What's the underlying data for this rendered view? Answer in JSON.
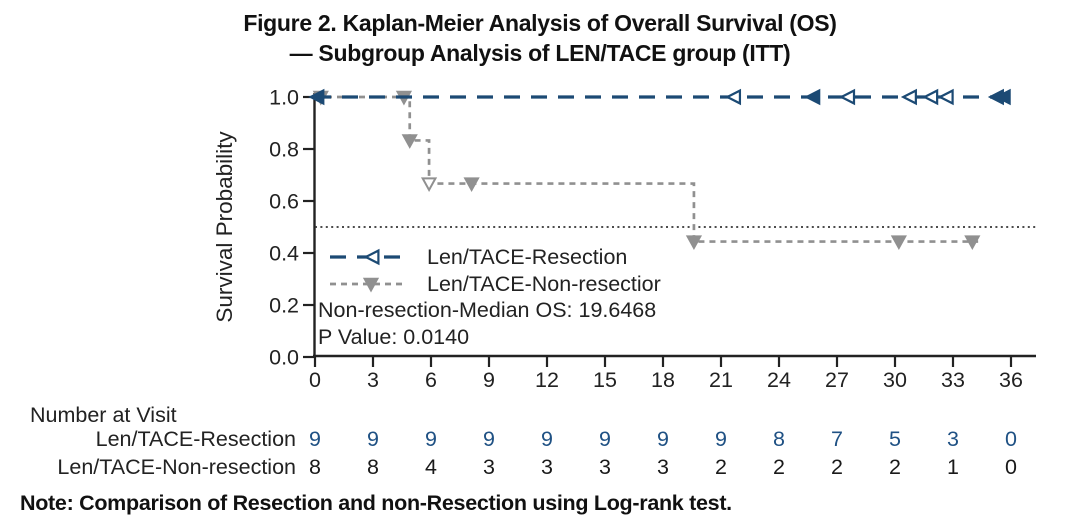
{
  "figure": {
    "title_line1": "Figure 2. Kaplan-Meier Analysis of Overall Survival (OS)",
    "title_line2": "— Subgroup Analysis of LEN/TACE group (ITT)",
    "note": "Note: Comparison of Resection and non-Resection using Log-rank test."
  },
  "chart_data": {
    "type": "line",
    "subtype": "kaplan-meier-step",
    "title": "Figure 2. Kaplan-Meier Analysis of Overall Survival (OS) — Subgroup Analysis of LEN/TACE group (ITT)",
    "xlabel": "",
    "ylabel": "Survival Probability",
    "xlim": [
      0,
      36
    ],
    "ylim": [
      0.0,
      1.0
    ],
    "xticks": [
      0,
      3,
      6,
      9,
      12,
      15,
      18,
      21,
      24,
      27,
      30,
      33,
      36
    ],
    "yticks": [
      0.0,
      0.2,
      0.4,
      0.6,
      0.8,
      1.0
    ],
    "ytick_labels": [
      "0.0",
      "0.2",
      "0.4",
      "0.6",
      "0.8",
      "1.0"
    ],
    "grid": false,
    "reference_line_y": 0.5,
    "legend_position": "inside-left-middle",
    "annotations": [
      "Non-resection-Median OS: 19.6468",
      "P Value: 0.0140"
    ],
    "colors": {
      "resection_blue": "#1c4a74",
      "resection_number_blue": "#1f5184",
      "nonresection_gray": "#909090",
      "reference_black": "#333333"
    },
    "series": [
      {
        "name": "Len/TACE-Resection",
        "legend_label": "Len/TACE-Resection",
        "color": "#1c4a74",
        "line_style": "dashed",
        "marker": "left-triangle",
        "step_points": [
          [
            0,
            1.0
          ],
          [
            35.7,
            1.0
          ]
        ],
        "censor_marks": [
          {
            "x": 0.15,
            "y": 1.0,
            "open": false
          },
          {
            "x": 21.7,
            "y": 1.0,
            "open": true
          },
          {
            "x": 25.8,
            "y": 1.0,
            "open": false
          },
          {
            "x": 27.6,
            "y": 1.0,
            "open": true
          },
          {
            "x": 30.8,
            "y": 1.0,
            "open": true
          },
          {
            "x": 31.9,
            "y": 1.0,
            "open": true
          },
          {
            "x": 32.7,
            "y": 1.0,
            "open": true
          },
          {
            "x": 35.3,
            "y": 1.0,
            "open": false
          },
          {
            "x": 35.65,
            "y": 1.0,
            "open": false
          }
        ]
      },
      {
        "name": "Len/TACE-Non-resection",
        "legend_label": "Len/TACE-Non-resectior",
        "color": "#909090",
        "line_style": "dotted",
        "marker": "down-triangle",
        "step_points": [
          [
            0,
            1.0
          ],
          [
            4.9,
            1.0
          ],
          [
            4.9,
            0.833
          ],
          [
            5.9,
            0.833
          ],
          [
            5.9,
            0.667
          ],
          [
            19.6,
            0.667
          ],
          [
            19.6,
            0.444
          ],
          [
            34.3,
            0.444
          ]
        ],
        "censor_marks": [
          {
            "x": 0.3,
            "y": 1.0,
            "open": false
          },
          {
            "x": 4.6,
            "y": 1.0,
            "open": false
          },
          {
            "x": 4.9,
            "y": 0.833,
            "open": false
          },
          {
            "x": 5.9,
            "y": 0.667,
            "open": true
          },
          {
            "x": 8.1,
            "y": 0.667,
            "open": false
          },
          {
            "x": 19.6,
            "y": 0.444,
            "open": false
          },
          {
            "x": 30.2,
            "y": 0.444,
            "open": false
          },
          {
            "x": 34.0,
            "y": 0.444,
            "open": false
          }
        ]
      }
    ]
  },
  "risk_table": {
    "title": "Number at Visit",
    "rows": [
      {
        "label": "Len/TACE-Resection",
        "color": "#1f5184",
        "values": [
          "9",
          "9",
          "9",
          "9",
          "9",
          "9",
          "9",
          "9",
          "8",
          "7",
          "5",
          "3",
          "0"
        ]
      },
      {
        "label": "Len/TACE-Non-resection",
        "color": "#1a1a1a",
        "values": [
          "8",
          "8",
          "4",
          "3",
          "3",
          "3",
          "3",
          "2",
          "2",
          "2",
          "2",
          "1",
          "0"
        ]
      }
    ]
  }
}
